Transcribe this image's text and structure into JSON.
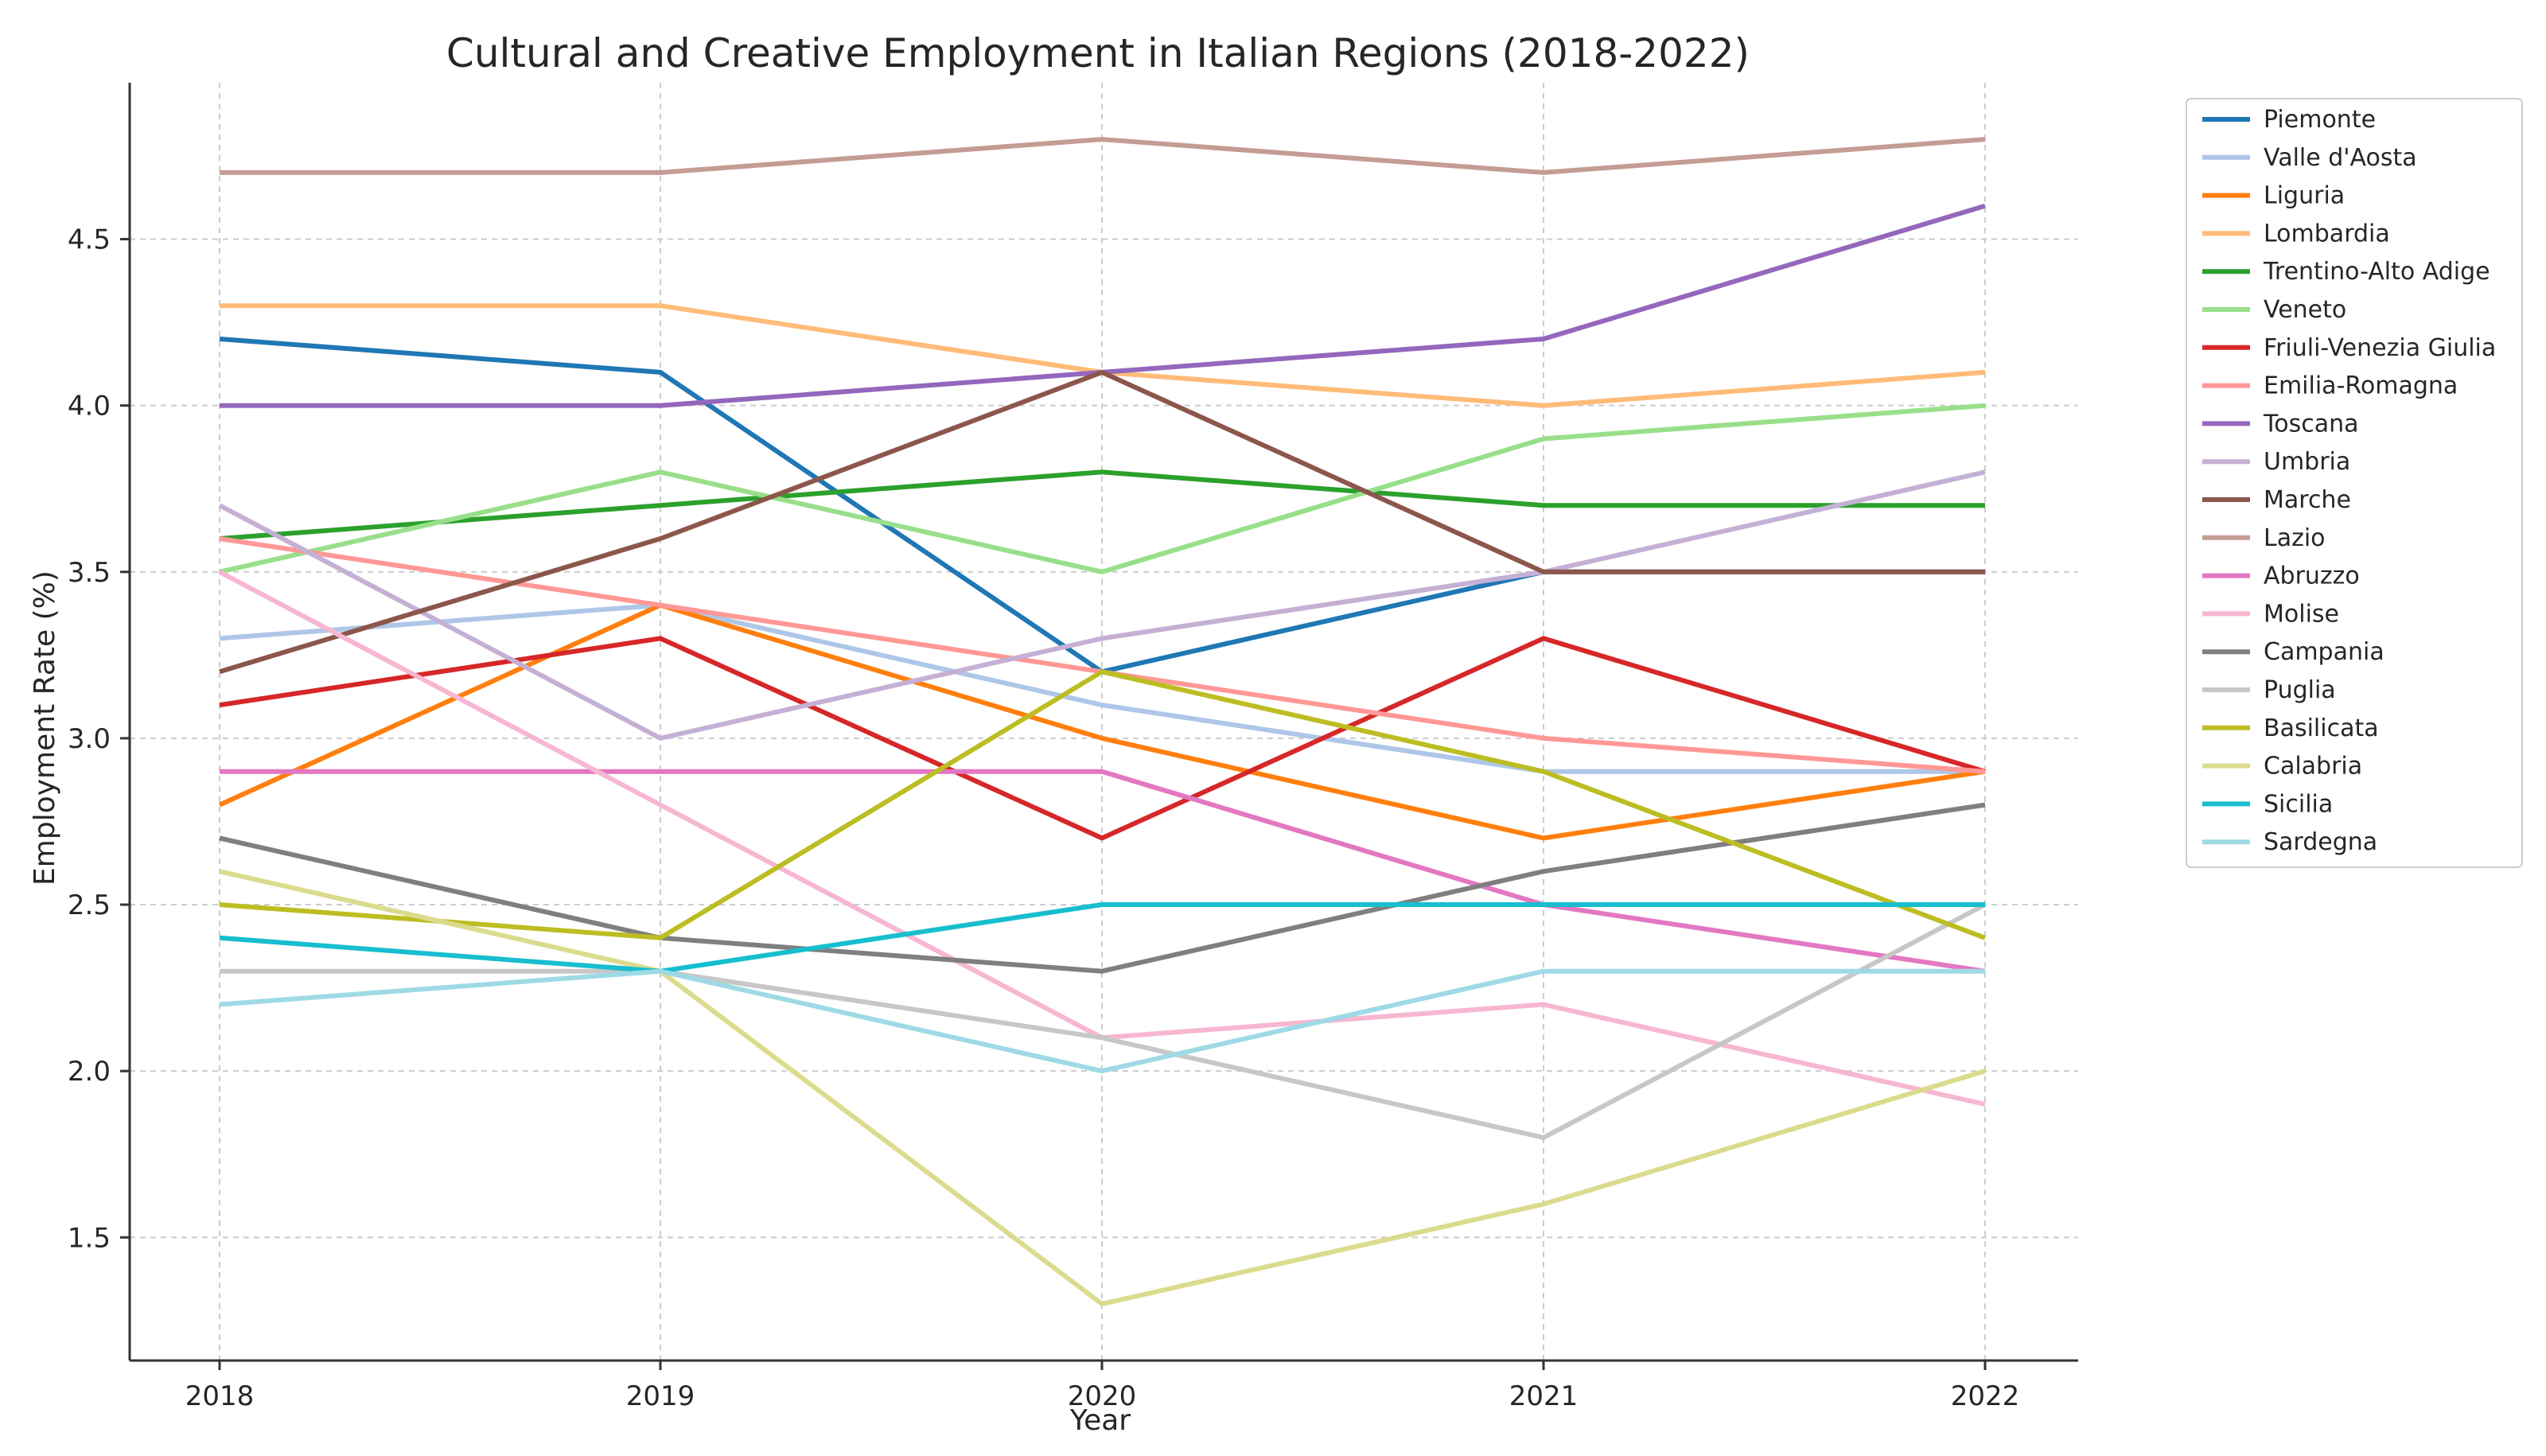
{
  "chart_data": {
    "type": "line",
    "title": "Cultural and Creative Employment in Italian Regions (2018-2022)",
    "xlabel": "Year",
    "ylabel": "Employment Rate (%)",
    "x": [
      2018,
      2019,
      2020,
      2021,
      2022
    ],
    "x_tick_labels": [
      "2018",
      "2019",
      "2020",
      "2021",
      "2022"
    ],
    "y_ticks": [
      1.5,
      2.0,
      2.5,
      3.0,
      3.5,
      4.0,
      4.5
    ],
    "y_tick_labels": [
      "1.5",
      "2.0",
      "2.5",
      "3.0",
      "3.5",
      "4.0",
      "4.5"
    ],
    "xlim": [
      2017.8,
      2022.2
    ],
    "ylim": [
      1.13,
      4.97
    ],
    "grid": true,
    "legend_position": "outside-right",
    "series": [
      {
        "name": "Piemonte",
        "color": "#1f77b4",
        "values": [
          4.2,
          4.1,
          3.2,
          3.5,
          3.5
        ]
      },
      {
        "name": "Valle d'Aosta",
        "color": "#aec7e8",
        "values": [
          3.3,
          3.4,
          3.1,
          2.9,
          2.9
        ]
      },
      {
        "name": "Liguria",
        "color": "#ff7f0e",
        "values": [
          2.8,
          3.4,
          3.0,
          2.7,
          2.9
        ]
      },
      {
        "name": "Lombardia",
        "color": "#ffbb78",
        "values": [
          4.3,
          4.3,
          4.1,
          4.0,
          4.1
        ]
      },
      {
        "name": "Trentino-Alto Adige",
        "color": "#2ca02c",
        "values": [
          3.6,
          3.7,
          3.8,
          3.7,
          3.7
        ]
      },
      {
        "name": "Veneto",
        "color": "#98df8a",
        "values": [
          3.5,
          3.8,
          3.5,
          3.9,
          4.0
        ]
      },
      {
        "name": "Friuli-Venezia Giulia",
        "color": "#d62728",
        "values": [
          3.1,
          3.3,
          2.7,
          3.3,
          2.9
        ]
      },
      {
        "name": "Emilia-Romagna",
        "color": "#ff9896",
        "values": [
          3.6,
          3.4,
          3.2,
          3.0,
          2.9
        ]
      },
      {
        "name": "Toscana",
        "color": "#9467bd",
        "values": [
          4.0,
          4.0,
          4.1,
          4.2,
          4.6
        ]
      },
      {
        "name": "Umbria",
        "color": "#c5b0d5",
        "values": [
          3.7,
          3.0,
          3.3,
          3.5,
          3.8
        ]
      },
      {
        "name": "Marche",
        "color": "#8c564b",
        "values": [
          3.2,
          3.6,
          4.1,
          3.5,
          3.5
        ]
      },
      {
        "name": "Lazio",
        "color": "#c49c94",
        "values": [
          4.7,
          4.7,
          4.8,
          4.7,
          4.8
        ]
      },
      {
        "name": "Abruzzo",
        "color": "#e377c2",
        "values": [
          2.9,
          2.9,
          2.9,
          2.5,
          2.3
        ]
      },
      {
        "name": "Molise",
        "color": "#f7b6d2",
        "values": [
          3.5,
          2.8,
          2.1,
          2.2,
          1.9
        ]
      },
      {
        "name": "Campania",
        "color": "#7f7f7f",
        "values": [
          2.7,
          2.4,
          2.3,
          2.6,
          2.8
        ]
      },
      {
        "name": "Puglia",
        "color": "#c7c7c7",
        "values": [
          2.3,
          2.3,
          2.1,
          1.8,
          2.5
        ]
      },
      {
        "name": "Basilicata",
        "color": "#bcbd22",
        "values": [
          2.5,
          2.4,
          3.2,
          2.9,
          2.4
        ]
      },
      {
        "name": "Calabria",
        "color": "#dbdb8d",
        "values": [
          2.6,
          2.3,
          1.3,
          1.6,
          2.0
        ]
      },
      {
        "name": "Sicilia",
        "color": "#17becf",
        "values": [
          2.4,
          2.3,
          2.5,
          2.5,
          2.5
        ]
      },
      {
        "name": "Sardegna",
        "color": "#9edae5",
        "values": [
          2.2,
          2.3,
          2.0,
          2.3,
          2.3
        ]
      }
    ]
  }
}
